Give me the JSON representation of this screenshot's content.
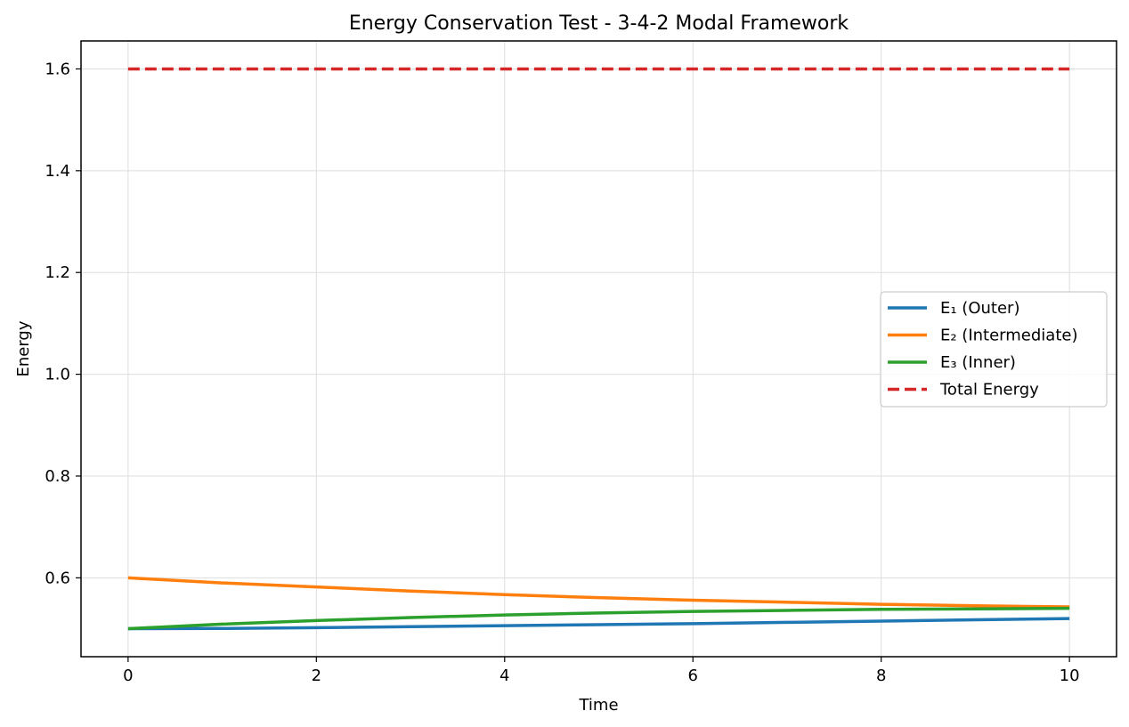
{
  "chart_data": {
    "type": "line",
    "title": "Energy Conservation Test - 3-4-2 Modal Framework",
    "xlabel": "Time",
    "ylabel": "Energy",
    "xlim": [
      -0.5,
      10.5
    ],
    "ylim": [
      0.445,
      1.655
    ],
    "xticks": [
      0,
      2,
      4,
      6,
      8,
      10
    ],
    "yticks": [
      0.6,
      0.8,
      1.0,
      1.2,
      1.4,
      1.6
    ],
    "xtick_labels": [
      "0",
      "2",
      "4",
      "6",
      "8",
      "10"
    ],
    "ytick_labels": [
      "0.6",
      "0.8",
      "1.0",
      "1.2",
      "1.4",
      "1.6"
    ],
    "grid": true,
    "legend_position": "center-right",
    "x": [
      0,
      1,
      2,
      3,
      4,
      5,
      6,
      7,
      8,
      9,
      10
    ],
    "series": [
      {
        "name": "E₁ (Outer)",
        "color": "#1f77b4",
        "style": "solid",
        "values": [
          0.5,
          0.5005,
          0.502,
          0.504,
          0.506,
          0.508,
          0.51,
          0.5125,
          0.515,
          0.5175,
          0.52
        ]
      },
      {
        "name": "E₂ (Intermediate)",
        "color": "#ff7f0e",
        "style": "solid",
        "values": [
          0.6,
          0.59,
          0.582,
          0.574,
          0.567,
          0.561,
          0.556,
          0.552,
          0.548,
          0.545,
          0.543
        ]
      },
      {
        "name": "E₃ (Inner)",
        "color": "#2ca02c",
        "style": "solid",
        "values": [
          0.5,
          0.509,
          0.516,
          0.522,
          0.527,
          0.531,
          0.534,
          0.536,
          0.538,
          0.539,
          0.54
        ]
      },
      {
        "name": "Total Energy",
        "color": "#d62728",
        "style": "dashed",
        "values": [
          1.6,
          1.6,
          1.6,
          1.6,
          1.6,
          1.6,
          1.6,
          1.6,
          1.6,
          1.6,
          1.6
        ]
      }
    ]
  }
}
